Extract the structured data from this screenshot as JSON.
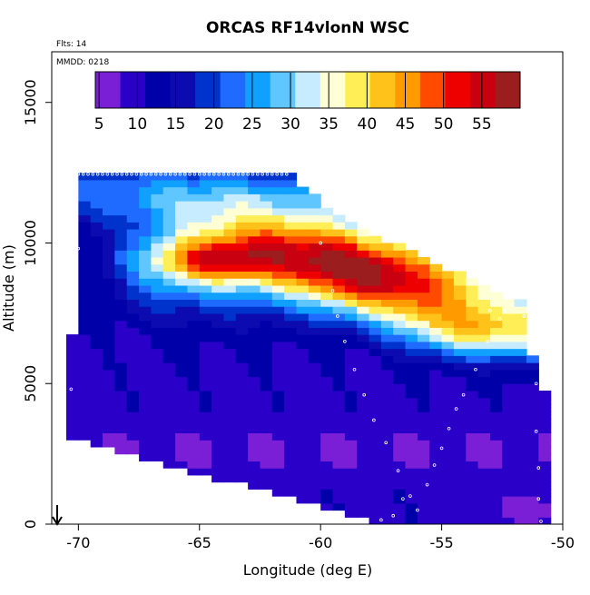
{
  "chart_data": {
    "type": "heatmap",
    "title": "ORCAS RF14vlonN WSC",
    "annotations": {
      "flights": "Flts: 14",
      "date": "MMDD: 0218"
    },
    "xlabel": "Longitude (deg E)",
    "ylabel": "Altitude (m)",
    "xlim": [
      -71.1,
      -50
    ],
    "ylim": [
      0,
      16800
    ],
    "x_ticks": [
      -70,
      -65,
      -60,
      -55,
      -50
    ],
    "x_tick_labels": [
      "-70",
      "-65",
      "-60",
      "-55",
      "-50"
    ],
    "y_ticks": [
      0,
      5000,
      10000,
      15000
    ],
    "y_tick_labels": [
      "0",
      "5000",
      "10000",
      "15000"
    ],
    "colorbar": {
      "min": 4.5,
      "max": 60,
      "ticks": [
        5,
        10,
        15,
        20,
        25,
        30,
        35,
        40,
        45,
        50,
        55
      ],
      "tick_labels": [
        "5",
        "10",
        "15",
        "20",
        "25",
        "30",
        "35",
        "40",
        "45",
        "50",
        "55"
      ],
      "colors": [
        "#7a1fd6",
        "#2a00c8",
        "#0000a8",
        "#0b0bb0",
        "#0033cc",
        "#1f6bff",
        "#10a0ff",
        "#5fc6ff",
        "#c8ecff",
        "#ffffd6",
        "#ffee55",
        "#ffc21a",
        "#ff9a00",
        "#ff4a00",
        "#ee0000",
        "#c80010",
        "#9b1d1d"
      ]
    },
    "grid": false,
    "legend": "top"
  }
}
